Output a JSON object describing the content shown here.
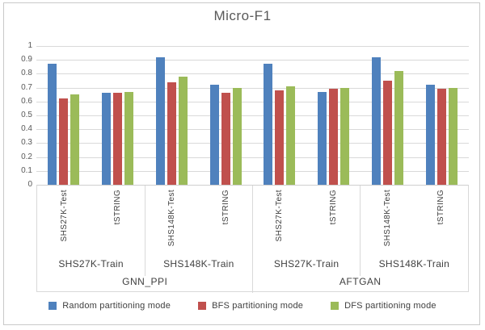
{
  "title": "Micro-F1",
  "colors": {
    "random": "#4F81BD",
    "bfs": "#C0504D",
    "dfs": "#9BBB59",
    "gridline": "#D9D9D9",
    "axis_text": "#595959",
    "label_text": "#404040"
  },
  "chart_data": {
    "type": "bar",
    "title": "Micro-F1",
    "xlabel": "",
    "ylabel": "",
    "ylim": [
      0,
      1
    ],
    "grid": true,
    "legend_position": "bottom",
    "ytick_labels": [
      "1",
      "0.9",
      "0.8",
      "0.7",
      "0.6",
      "0.5",
      "0.4",
      "0.3",
      "0.2",
      "0.1",
      "0"
    ],
    "ytick_values": [
      1,
      0.9,
      0.8,
      0.7,
      0.6,
      0.5,
      0.4,
      0.3,
      0.2,
      0.1,
      0
    ],
    "categories": [
      "SHS27K-Test",
      "tSTRING",
      "SHS148K-Test",
      "tSTRING",
      "SHS27K-Test",
      "tSTRING",
      "SHS148K-Test",
      "tSTRING"
    ],
    "x_hierarchy": {
      "train_labels": [
        "SHS27K-Train",
        "SHS148K-Train",
        "SHS27K-Train",
        "SHS148K-Train"
      ],
      "model_labels": [
        "GNN_PPI",
        "AFTGAN"
      ]
    },
    "series": [
      {
        "name": "Random partitioning mode",
        "color": "#4F81BD",
        "values": [
          0.87,
          0.66,
          0.92,
          0.72,
          0.87,
          0.67,
          0.92,
          0.72
        ]
      },
      {
        "name": "BFS partitioning mode",
        "color": "#C0504D",
        "values": [
          0.62,
          0.66,
          0.74,
          0.66,
          0.68,
          0.69,
          0.75,
          0.69
        ]
      },
      {
        "name": "DFS partitioning mode",
        "color": "#9BBB59",
        "values": [
          0.65,
          0.67,
          0.78,
          0.7,
          0.71,
          0.7,
          0.82,
          0.7
        ]
      }
    ]
  },
  "legend": {
    "items": [
      {
        "label": "Random partitioning mode",
        "color": "#4F81BD"
      },
      {
        "label": "BFS partitioning mode",
        "color": "#C0504D"
      },
      {
        "label": "DFS partitioning mode",
        "color": "#9BBB59"
      }
    ]
  }
}
